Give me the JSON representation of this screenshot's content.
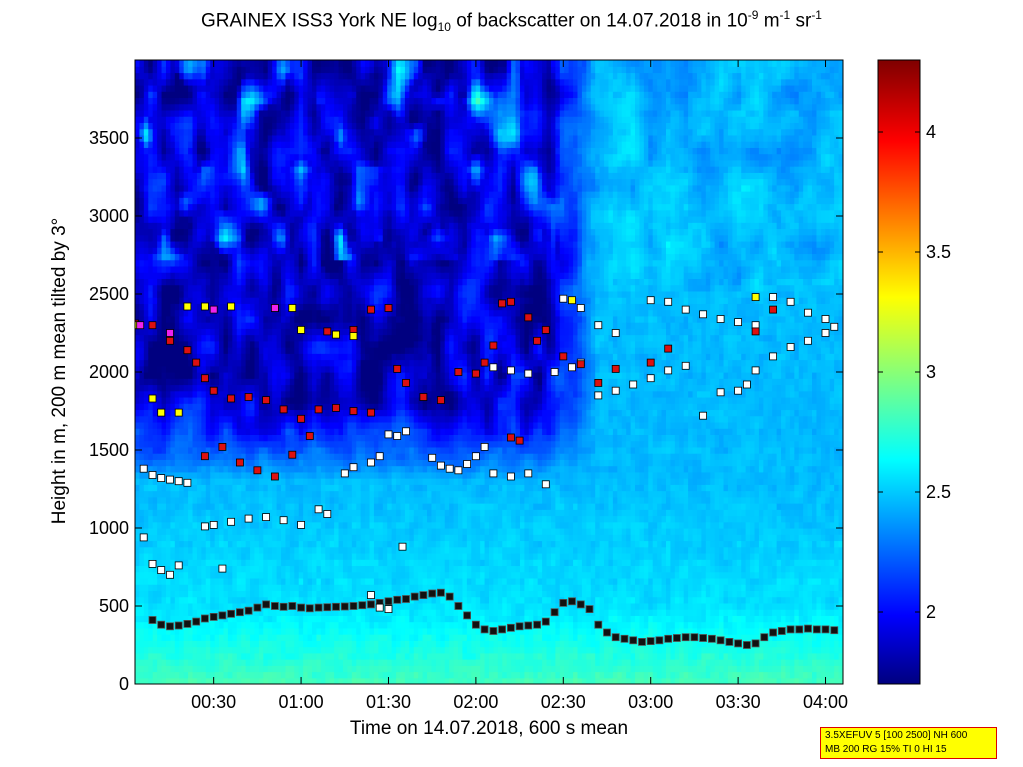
{
  "title": {
    "pre": "GRAINEX ISS3 York NE log",
    "sub": "10",
    "mid": " of backscatter on 14.07.2018 in 10",
    "sup1": "-9",
    "unit1": " m",
    "sup2": "-1",
    "unit2": " sr",
    "sup3": "-1"
  },
  "info_box": {
    "line1": "3.5XEFUV 5 [100 2500] NH 600",
    "line2": "MB 200 RG 15% TI 0 HI 15"
  },
  "chart_data": {
    "type": "heatmap",
    "xlabel": "Time on 14.07.2018, 600 s mean",
    "ylabel": "Height in m, 200 m mean tilted by 3°",
    "x_unit": "hours after 00:00",
    "xlim": [
      0.05,
      4.1
    ],
    "ylim": [
      0,
      4000
    ],
    "x_ticks": [
      {
        "v": 0.5,
        "label": "00:30"
      },
      {
        "v": 1.0,
        "label": "01:00"
      },
      {
        "v": 1.5,
        "label": "01:30"
      },
      {
        "v": 2.0,
        "label": "02:00"
      },
      {
        "v": 2.5,
        "label": "02:30"
      },
      {
        "v": 3.0,
        "label": "03:00"
      },
      {
        "v": 3.5,
        "label": "03:30"
      },
      {
        "v": 4.0,
        "label": "04:00"
      }
    ],
    "y_ticks": [
      0,
      500,
      1000,
      1500,
      2000,
      2500,
      3000,
      3500
    ],
    "colorbar": {
      "range": [
        1.7,
        4.3
      ],
      "ticks": [
        "2",
        "2.5",
        "3",
        "3.5",
        "4"
      ],
      "tick_values": [
        2,
        2.5,
        3,
        3.5,
        4
      ],
      "colormap": "jet"
    },
    "heatmap_summary": {
      "description_values": "log10 backscatter; ~2.7-2.9 near ground, ~2.4-2.6 mid-levels, ~1.8-2.3 above 1500 m before 02:30, ~2.4-2.6 above 2500 m after 02:30"
    },
    "series": [
      {
        "marker": "black-square",
        "points": [
          [
            0.15,
            410
          ],
          [
            0.2,
            380
          ],
          [
            0.25,
            370
          ],
          [
            0.3,
            375
          ],
          [
            0.35,
            385
          ],
          [
            0.4,
            400
          ],
          [
            0.45,
            420
          ],
          [
            0.5,
            430
          ],
          [
            0.55,
            440
          ],
          [
            0.6,
            450
          ],
          [
            0.65,
            460
          ],
          [
            0.7,
            470
          ],
          [
            0.75,
            490
          ],
          [
            0.8,
            510
          ],
          [
            0.85,
            500
          ],
          [
            0.9,
            495
          ],
          [
            0.95,
            500
          ],
          [
            1.0,
            490
          ],
          [
            1.05,
            485
          ],
          [
            1.1,
            490
          ],
          [
            1.15,
            492
          ],
          [
            1.2,
            495
          ],
          [
            1.25,
            497
          ],
          [
            1.3,
            500
          ],
          [
            1.35,
            505
          ],
          [
            1.4,
            510
          ],
          [
            1.45,
            520
          ],
          [
            1.5,
            530
          ],
          [
            1.55,
            540
          ],
          [
            1.6,
            545
          ],
          [
            1.65,
            560
          ],
          [
            1.7,
            570
          ],
          [
            1.75,
            580
          ],
          [
            1.8,
            585
          ],
          [
            1.85,
            560
          ],
          [
            1.9,
            500
          ],
          [
            1.95,
            440
          ],
          [
            2.0,
            380
          ],
          [
            2.05,
            350
          ],
          [
            2.1,
            340
          ],
          [
            2.15,
            350
          ],
          [
            2.2,
            360
          ],
          [
            2.25,
            370
          ],
          [
            2.3,
            375
          ],
          [
            2.35,
            380
          ],
          [
            2.4,
            400
          ],
          [
            2.45,
            460
          ],
          [
            2.5,
            520
          ],
          [
            2.55,
            530
          ],
          [
            2.6,
            510
          ],
          [
            2.65,
            480
          ],
          [
            2.7,
            380
          ],
          [
            2.75,
            330
          ],
          [
            2.8,
            300
          ],
          [
            2.85,
            290
          ],
          [
            2.9,
            280
          ],
          [
            2.95,
            270
          ],
          [
            3.0,
            275
          ],
          [
            3.05,
            280
          ],
          [
            3.1,
            290
          ],
          [
            3.15,
            295
          ],
          [
            3.2,
            300
          ],
          [
            3.25,
            300
          ],
          [
            3.3,
            295
          ],
          [
            3.35,
            290
          ],
          [
            3.4,
            280
          ],
          [
            3.45,
            270
          ],
          [
            3.5,
            260
          ],
          [
            3.55,
            250
          ],
          [
            3.6,
            260
          ],
          [
            3.65,
            300
          ],
          [
            3.7,
            330
          ],
          [
            3.75,
            340
          ],
          [
            3.8,
            350
          ],
          [
            3.85,
            350
          ],
          [
            3.9,
            355
          ],
          [
            3.95,
            350
          ],
          [
            4.0,
            350
          ],
          [
            4.05,
            345
          ]
        ]
      },
      {
        "marker": "white-square",
        "points": [
          [
            0.1,
            1380
          ],
          [
            0.15,
            1340
          ],
          [
            0.2,
            1320
          ],
          [
            0.25,
            1310
          ],
          [
            0.3,
            1300
          ],
          [
            0.35,
            1290
          ],
          [
            0.45,
            1010
          ],
          [
            0.5,
            1020
          ],
          [
            0.6,
            1040
          ],
          [
            0.7,
            1060
          ],
          [
            0.8,
            1070
          ],
          [
            0.9,
            1050
          ],
          [
            1.0,
            1020
          ],
          [
            1.1,
            1120
          ],
          [
            1.15,
            1090
          ],
          [
            1.25,
            1350
          ],
          [
            1.3,
            1390
          ],
          [
            1.4,
            1420
          ],
          [
            1.45,
            1460
          ],
          [
            1.5,
            1600
          ],
          [
            1.55,
            1590
          ],
          [
            1.6,
            1620
          ],
          [
            1.75,
            1450
          ],
          [
            1.8,
            1400
          ],
          [
            1.85,
            1380
          ],
          [
            1.9,
            1370
          ],
          [
            1.95,
            1410
          ],
          [
            2.0,
            1460
          ],
          [
            2.05,
            1520
          ],
          [
            2.1,
            1350
          ],
          [
            2.2,
            1330
          ],
          [
            2.3,
            1350
          ],
          [
            2.4,
            1280
          ],
          [
            2.1,
            2030
          ],
          [
            2.2,
            2010
          ],
          [
            2.3,
            1990
          ],
          [
            2.45,
            2000
          ],
          [
            2.55,
            2030
          ],
          [
            2.6,
            2060
          ],
          [
            2.7,
            1850
          ],
          [
            2.8,
            1880
          ],
          [
            2.9,
            1920
          ],
          [
            3.0,
            1960
          ],
          [
            3.1,
            2010
          ],
          [
            3.2,
            2040
          ],
          [
            3.3,
            1720
          ],
          [
            3.4,
            1870
          ],
          [
            3.5,
            1880
          ],
          [
            3.55,
            1920
          ],
          [
            3.6,
            2010
          ],
          [
            3.7,
            2100
          ],
          [
            3.8,
            2160
          ],
          [
            3.9,
            2200
          ],
          [
            4.0,
            2250
          ],
          [
            4.05,
            2290
          ],
          [
            2.5,
            2470
          ],
          [
            2.6,
            2410
          ],
          [
            2.7,
            2300
          ],
          [
            2.8,
            2250
          ],
          [
            3.0,
            2460
          ],
          [
            3.1,
            2450
          ],
          [
            3.2,
            2400
          ],
          [
            3.3,
            2370
          ],
          [
            3.4,
            2340
          ],
          [
            3.5,
            2320
          ],
          [
            3.6,
            2300
          ],
          [
            3.7,
            2480
          ],
          [
            3.8,
            2450
          ],
          [
            3.9,
            2380
          ],
          [
            4.0,
            2340
          ],
          [
            0.1,
            940
          ],
          [
            0.15,
            770
          ],
          [
            0.2,
            730
          ],
          [
            0.25,
            700
          ],
          [
            0.3,
            760
          ],
          [
            0.55,
            740
          ],
          [
            1.4,
            570
          ],
          [
            1.45,
            490
          ],
          [
            1.5,
            480
          ],
          [
            1.58,
            880
          ]
        ]
      },
      {
        "marker": "red-square",
        "points": [
          [
            0.05,
            2310
          ],
          [
            0.15,
            2300
          ],
          [
            0.25,
            2200
          ],
          [
            0.35,
            2140
          ],
          [
            0.4,
            2060
          ],
          [
            0.45,
            1960
          ],
          [
            0.5,
            1880
          ],
          [
            0.6,
            1830
          ],
          [
            0.7,
            1840
          ],
          [
            0.8,
            1820
          ],
          [
            0.9,
            1760
          ],
          [
            1.0,
            1700
          ],
          [
            1.1,
            1760
          ],
          [
            1.2,
            1770
          ],
          [
            1.3,
            1750
          ],
          [
            1.4,
            1740
          ],
          [
            0.45,
            1460
          ],
          [
            0.55,
            1520
          ],
          [
            0.65,
            1420
          ],
          [
            0.75,
            1370
          ],
          [
            0.85,
            1330
          ],
          [
            0.95,
            1470
          ],
          [
            1.05,
            1590
          ],
          [
            1.15,
            2260
          ],
          [
            1.2,
            2240
          ],
          [
            1.3,
            2270
          ],
          [
            1.4,
            2400
          ],
          [
            1.5,
            2410
          ],
          [
            1.55,
            2020
          ],
          [
            1.6,
            1930
          ],
          [
            1.7,
            1840
          ],
          [
            1.8,
            1820
          ],
          [
            1.9,
            2000
          ],
          [
            2.0,
            1990
          ],
          [
            2.05,
            2060
          ],
          [
            2.1,
            2170
          ],
          [
            2.15,
            2440
          ],
          [
            2.2,
            2450
          ],
          [
            2.3,
            2350
          ],
          [
            2.35,
            2200
          ],
          [
            2.4,
            2270
          ],
          [
            2.5,
            2100
          ],
          [
            2.6,
            2050
          ],
          [
            2.7,
            1930
          ],
          [
            2.8,
            2020
          ],
          [
            3.0,
            2060
          ],
          [
            3.1,
            2150
          ],
          [
            3.6,
            2260
          ],
          [
            3.7,
            2400
          ],
          [
            2.2,
            1580
          ],
          [
            2.25,
            1560
          ]
        ]
      },
      {
        "marker": "yellow-square",
        "points": [
          [
            0.05,
            2300
          ],
          [
            0.15,
            1830
          ],
          [
            0.2,
            1740
          ],
          [
            0.3,
            1740
          ],
          [
            0.35,
            2420
          ],
          [
            0.45,
            2420
          ],
          [
            0.6,
            2420
          ],
          [
            0.85,
            2410
          ],
          [
            0.95,
            2410
          ],
          [
            1.0,
            2270
          ],
          [
            1.2,
            2240
          ],
          [
            1.3,
            2230
          ],
          [
            2.55,
            2460
          ],
          [
            3.6,
            2480
          ]
        ]
      },
      {
        "marker": "magenta-square",
        "points": [
          [
            0.08,
            2300
          ],
          [
            0.25,
            2250
          ],
          [
            0.5,
            2400
          ],
          [
            0.85,
            2410
          ]
        ]
      }
    ]
  }
}
